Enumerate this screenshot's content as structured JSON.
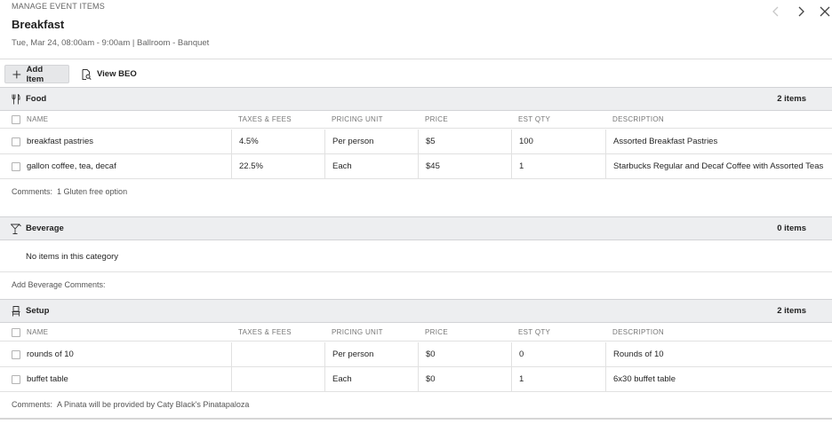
{
  "header": {
    "eyebrow": "MANAGE EVENT ITEMS",
    "title": "Breakfast",
    "subtitle": "Tue, Mar 24, 08:00am - 9:00am | Ballroom - Banquet",
    "icons": [
      "chevron-left-icon",
      "chevron-right-icon",
      "close-icon"
    ]
  },
  "toolbar": {
    "add_label": "Add Item",
    "view_label": "View BEO"
  },
  "columns": {
    "name": "NAME",
    "taxes": "TAXES & FEES",
    "unit": "PRICING UNIT",
    "price": "PRICE",
    "qty": "EST QTY",
    "desc": "DESCRIPTION"
  },
  "sections": {
    "food": {
      "name": "Food",
      "count": "2 items",
      "icon": "utensils-icon",
      "rows": [
        {
          "name": "breakfast pastries",
          "taxes": "4.5%",
          "unit": "Per person",
          "price": "$5",
          "qty": "100",
          "desc": "Assorted Breakfast Pastries"
        },
        {
          "name": "gallon coffee, tea, decaf",
          "taxes": "22.5%",
          "unit": "Each",
          "price": "$45",
          "qty": "1",
          "desc": "Starbucks Regular and Decaf Coffee with Assorted Teas"
        }
      ],
      "comment_label": "Comments:",
      "comment_value": "1 Gluten free option"
    },
    "beverage": {
      "name": "Beverage",
      "count": "0 items",
      "icon": "cocktail-icon",
      "empty_text": "No items in this category",
      "comment_label": "Add Beverage Comments:"
    },
    "setup": {
      "name": "Setup",
      "count": "2 items",
      "icon": "chair-icon",
      "rows": [
        {
          "name": "rounds of 10",
          "taxes": "",
          "unit": "Per person",
          "price": "$0",
          "qty": "0",
          "desc": "Rounds of 10"
        },
        {
          "name": "buffet table",
          "taxes": "",
          "unit": "Each",
          "price": "$0",
          "qty": "1",
          "desc": "6x30 buffet table"
        }
      ],
      "comment_label": "Comments:",
      "comment_value": "A Pinata will be provided by Caty Black's Pinatapaloza"
    }
  }
}
